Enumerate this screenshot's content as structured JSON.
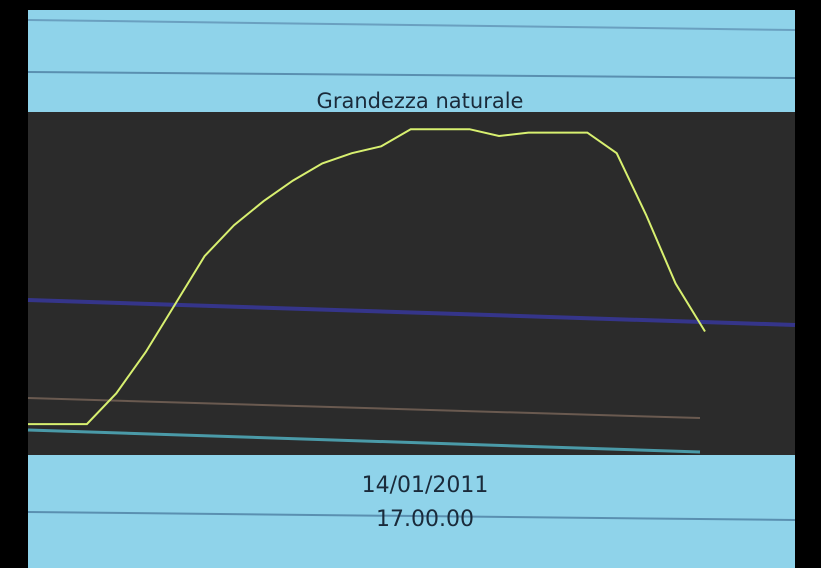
{
  "chart_data": {
    "type": "line",
    "title": "Grandezza naturale",
    "values": [
      9,
      9,
      9,
      18,
      30,
      44,
      58,
      67,
      74,
      80,
      85,
      88,
      90,
      95,
      95,
      95,
      93,
      94,
      94,
      94,
      88,
      70,
      50,
      36
    ],
    "color": "#d8f070",
    "ylim": [
      0,
      100
    ],
    "annotations": [
      "14/01/2011",
      "17.00.00"
    ]
  }
}
